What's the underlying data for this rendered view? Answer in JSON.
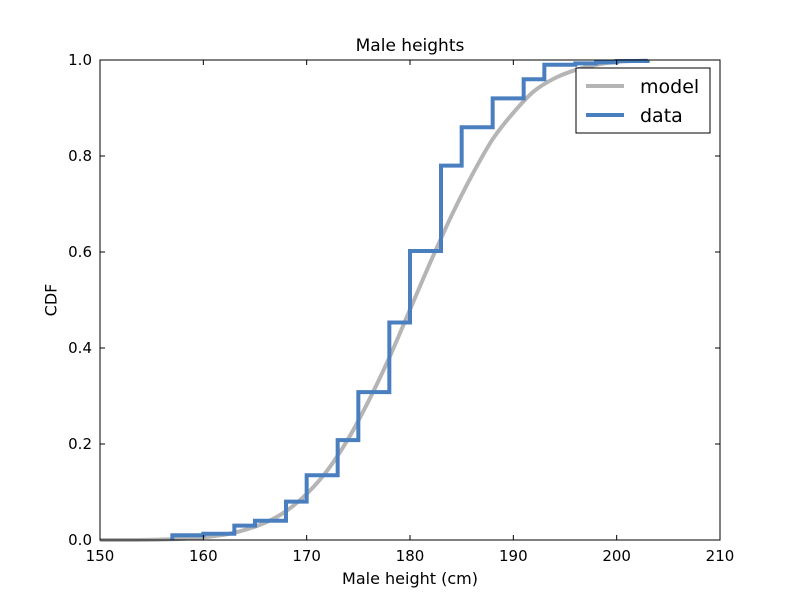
{
  "chart_data": {
    "type": "line",
    "title": "Male heights",
    "xlabel": "Male height (cm)",
    "ylabel": "CDF",
    "xlim": [
      150,
      210
    ],
    "ylim": [
      0.0,
      1.0
    ],
    "xticks": [
      "150",
      "160",
      "170",
      "180",
      "190",
      "200",
      "210"
    ],
    "yticks": [
      "0.0",
      "0.2",
      "0.4",
      "0.6",
      "0.8",
      "1.0"
    ],
    "grid": false,
    "legend_position": "top-right",
    "series": [
      {
        "name": "model",
        "style": "smooth",
        "color": "#b5b5b5",
        "x": [
          150,
          153,
          156,
          159,
          162,
          164,
          166,
          168,
          170,
          172,
          174,
          176,
          178,
          180,
          182,
          184,
          186,
          188,
          190,
          192,
          194,
          196,
          198,
          200,
          203
        ],
        "y": [
          0.0,
          0.0,
          0.001,
          0.004,
          0.011,
          0.021,
          0.036,
          0.06,
          0.096,
          0.145,
          0.21,
          0.29,
          0.38,
          0.48,
          0.58,
          0.675,
          0.76,
          0.835,
          0.89,
          0.935,
          0.962,
          0.979,
          0.99,
          0.996,
          0.999
        ]
      },
      {
        "name": "data",
        "style": "step",
        "color": "#4a7fbf",
        "x": [
          157,
          160,
          163,
          165,
          168,
          170,
          173,
          175,
          178,
          180,
          183,
          185,
          188,
          191,
          193,
          196,
          198,
          200,
          203
        ],
        "y": [
          0.01,
          0.013,
          0.03,
          0.04,
          0.08,
          0.135,
          0.208,
          0.308,
          0.453,
          0.602,
          0.78,
          0.86,
          0.92,
          0.96,
          0.99,
          0.993,
          0.995,
          0.998,
          1.0
        ]
      }
    ]
  }
}
